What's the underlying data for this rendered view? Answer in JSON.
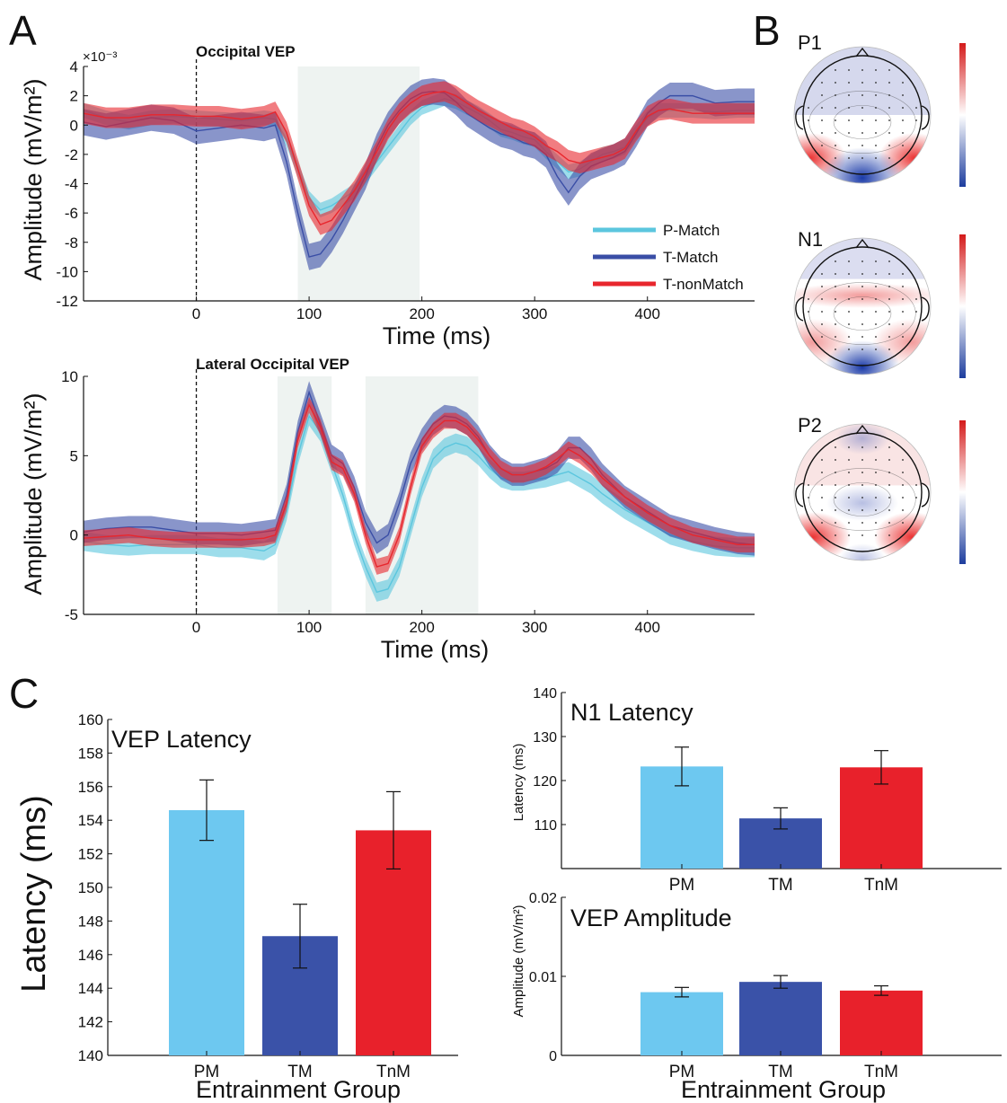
{
  "panel_letters": {
    "a": "A",
    "b": "B",
    "c": "C"
  },
  "colors": {
    "pmatch": "#5bc6de",
    "tmatch": "#3a4ea6",
    "tnonmatch": "#e8262d",
    "pm_bar": "#6dc8f0",
    "tm_bar": "#3a52a8",
    "tnm_bar": "#e8212b",
    "shade": "#eef3f1",
    "topo_red": "#e02020",
    "topo_blue": "#2040a8"
  },
  "chart_data": [
    {
      "id": "occipital",
      "type": "line",
      "title": "Occipital VEP",
      "exponent_label": "×10⁻³",
      "xlabel": "Time (ms)",
      "ylabel": "Amplitude (mV/m²)",
      "xlim": [
        -100,
        495
      ],
      "ylim": [
        -12,
        4
      ],
      "xticks": [
        0,
        100,
        200,
        300,
        400
      ],
      "yticks": [
        4,
        2,
        0,
        -2,
        -4,
        -6,
        -8,
        -10,
        -12
      ],
      "shaded": [
        [
          90,
          198
        ]
      ],
      "legend_position": "right",
      "x": [
        -100,
        -80,
        -60,
        -40,
        -20,
        0,
        20,
        40,
        60,
        70,
        80,
        90,
        100,
        110,
        120,
        130,
        140,
        150,
        160,
        170,
        180,
        190,
        200,
        210,
        220,
        230,
        240,
        250,
        260,
        270,
        280,
        290,
        300,
        310,
        320,
        330,
        340,
        350,
        360,
        370,
        380,
        390,
        400,
        410,
        420,
        440,
        460,
        480,
        495
      ],
      "series": [
        {
          "name": "P-Match",
          "color_key": "pmatch",
          "band": 0.5,
          "values": [
            1.0,
            0.5,
            0.2,
            0.5,
            0.6,
            0.5,
            0.4,
            0.3,
            0.5,
            0.4,
            -1.0,
            -3.0,
            -5.0,
            -5.8,
            -5.5,
            -5.0,
            -4.5,
            -3.5,
            -2.5,
            -1.5,
            -0.5,
            0.5,
            1.2,
            1.5,
            1.8,
            1.6,
            1.2,
            0.8,
            0.3,
            -0.3,
            -0.5,
            -0.8,
            -1.0,
            -1.8,
            -2.5,
            -3.2,
            -3.0,
            -2.5,
            -2.0,
            -1.8,
            -1.5,
            -0.5,
            0.5,
            1.0,
            1.0,
            1.0,
            0.9,
            1.0,
            1.0
          ]
        },
        {
          "name": "T-Match",
          "color_key": "tmatch",
          "band": 0.9,
          "values": [
            0.2,
            -0.1,
            0.2,
            0.5,
            0.3,
            -0.4,
            -0.2,
            0.0,
            -0.2,
            0.0,
            -2.5,
            -6.0,
            -9.0,
            -8.8,
            -7.8,
            -6.5,
            -5.0,
            -3.5,
            -1.5,
            0.0,
            1.0,
            1.8,
            2.2,
            2.3,
            2.2,
            1.6,
            0.8,
            0.3,
            -0.2,
            -0.6,
            -0.8,
            -1.2,
            -1.4,
            -2.0,
            -3.5,
            -4.6,
            -3.5,
            -2.8,
            -2.5,
            -2.2,
            -1.8,
            -0.6,
            0.8,
            1.5,
            2.0,
            2.0,
            1.5,
            1.6,
            1.6
          ]
        },
        {
          "name": "T-nonMatch",
          "color_key": "tnonmatch",
          "band": 0.7,
          "values": [
            0.8,
            0.5,
            0.5,
            0.7,
            0.7,
            0.6,
            0.6,
            0.4,
            0.6,
            0.9,
            -0.5,
            -3.0,
            -5.5,
            -6.8,
            -6.5,
            -5.5,
            -4.5,
            -3.2,
            -1.8,
            -0.3,
            0.8,
            1.5,
            2.0,
            2.2,
            2.3,
            2.0,
            1.5,
            1.0,
            0.6,
            0.2,
            -0.2,
            -0.4,
            -0.8,
            -1.4,
            -1.8,
            -2.4,
            -2.6,
            -2.4,
            -2.2,
            -2.0,
            -1.6,
            -0.4,
            0.6,
            1.0,
            1.1,
            0.8,
            0.8,
            0.8,
            0.8
          ]
        }
      ]
    },
    {
      "id": "lateral",
      "type": "line",
      "title": "Lateral Occipital VEP",
      "xlabel": "Time (ms)",
      "ylabel": "Amplitude (mV/m²)",
      "xlim": [
        -100,
        495
      ],
      "ylim": [
        -5,
        10
      ],
      "xticks": [
        0,
        100,
        200,
        300,
        400
      ],
      "yticks": [
        10,
        5,
        0,
        -5
      ],
      "shaded": [
        [
          72,
          120
        ],
        [
          150,
          250
        ]
      ],
      "x": [
        -100,
        -80,
        -60,
        -40,
        -20,
        0,
        20,
        40,
        60,
        70,
        80,
        90,
        100,
        110,
        120,
        130,
        140,
        150,
        160,
        170,
        180,
        190,
        200,
        210,
        220,
        230,
        240,
        250,
        260,
        270,
        280,
        290,
        300,
        310,
        320,
        330,
        340,
        350,
        360,
        380,
        400,
        420,
        440,
        460,
        480,
        495
      ],
      "series": [
        {
          "name": "P-Match",
          "color_key": "pmatch",
          "band": 0.6,
          "values": [
            -0.4,
            -0.6,
            -0.7,
            -0.6,
            -0.6,
            -0.6,
            -0.8,
            -0.8,
            -1.0,
            -0.6,
            1.5,
            5.0,
            7.5,
            6.5,
            4.5,
            2.5,
            0.0,
            -2.0,
            -3.6,
            -3.4,
            -2.0,
            0.5,
            3.0,
            4.8,
            5.5,
            5.8,
            5.6,
            5.0,
            4.2,
            3.6,
            3.4,
            3.4,
            3.5,
            3.6,
            3.8,
            4.0,
            3.6,
            3.2,
            2.6,
            1.6,
            0.8,
            0.0,
            -0.4,
            -0.7,
            -0.8,
            -0.8
          ]
        },
        {
          "name": "T-Match",
          "color_key": "tmatch",
          "band": 0.7,
          "values": [
            0.2,
            0.4,
            0.5,
            0.5,
            0.3,
            0.1,
            0.1,
            0.0,
            0.2,
            0.3,
            2.5,
            6.5,
            9.0,
            7.0,
            5.0,
            4.5,
            3.0,
            0.8,
            -0.5,
            0.0,
            2.0,
            4.5,
            6.0,
            7.0,
            7.5,
            7.4,
            7.0,
            6.2,
            5.0,
            4.2,
            3.8,
            3.8,
            4.0,
            4.2,
            4.6,
            5.5,
            5.5,
            4.8,
            3.8,
            2.4,
            1.5,
            0.6,
            0.2,
            -0.2,
            -0.5,
            -0.6
          ]
        },
        {
          "name": "T-nonMatch",
          "color_key": "tnonmatch",
          "band": 0.5,
          "values": [
            -0.2,
            -0.1,
            0.0,
            -0.2,
            -0.3,
            -0.3,
            -0.3,
            -0.3,
            -0.2,
            0.0,
            2.0,
            6.0,
            8.2,
            6.8,
            4.6,
            4.2,
            2.6,
            0.0,
            -2.0,
            -1.8,
            0.0,
            3.0,
            5.6,
            6.6,
            7.2,
            7.2,
            6.8,
            6.0,
            5.0,
            4.2,
            3.8,
            3.8,
            4.0,
            4.3,
            4.8,
            5.4,
            5.0,
            4.4,
            3.6,
            2.4,
            1.4,
            0.6,
            0.0,
            -0.3,
            -0.6,
            -0.6
          ]
        }
      ]
    },
    {
      "id": "vep_latency",
      "type": "bar",
      "title": "VEP Latency",
      "xlabel": "Entrainment Group",
      "ylabel": "Latency (ms)",
      "ylim": [
        140,
        160
      ],
      "yticks": [
        140,
        142,
        144,
        146,
        148,
        150,
        152,
        154,
        156,
        158,
        160
      ],
      "categories": [
        "PM",
        "TM",
        "TnM"
      ],
      "values": [
        154.6,
        147.1,
        153.4
      ],
      "errors": [
        1.8,
        1.9,
        2.3
      ]
    },
    {
      "id": "n1_latency",
      "type": "bar",
      "title": "N1 Latency",
      "xlabel": "",
      "ylabel": "Latency (ms)",
      "ylim": [
        100,
        140
      ],
      "yticks": [
        110,
        120,
        130,
        140
      ],
      "categories": [
        "PM",
        "TM",
        "TnM"
      ],
      "values": [
        123.2,
        111.4,
        123.0
      ],
      "errors": [
        4.4,
        2.4,
        3.8
      ]
    },
    {
      "id": "vep_amplitude",
      "type": "bar",
      "title": "VEP Amplitude",
      "xlabel": "Entrainment Group",
      "ylabel": "Amplitude (mV/m²)",
      "ylim": [
        0,
        0.02
      ],
      "yticks": [
        0,
        0.01,
        0.02
      ],
      "ytick_labels": [
        "0",
        "0.01",
        "0.02"
      ],
      "categories": [
        "PM",
        "TM",
        "TnM"
      ],
      "values": [
        0.008,
        0.0093,
        0.0082
      ],
      "errors": [
        0.0006,
        0.0008,
        0.0006
      ]
    }
  ],
  "topomaps": [
    {
      "label": "P1",
      "pattern": "p1"
    },
    {
      "label": "N1",
      "pattern": "n1"
    },
    {
      "label": "P2",
      "pattern": "p2"
    }
  ]
}
